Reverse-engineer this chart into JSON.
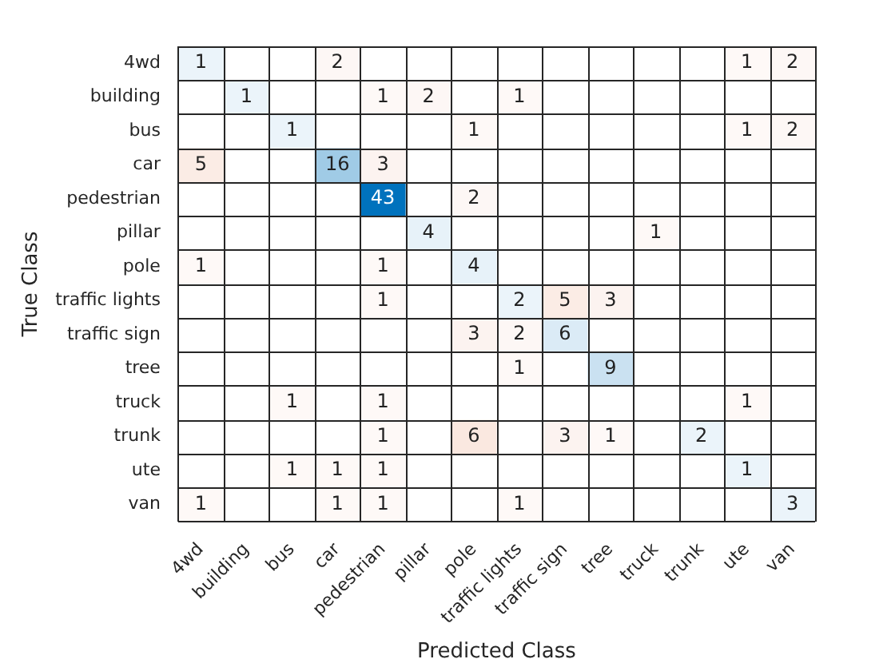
{
  "chart_data": {
    "type": "heatmap",
    "data_labels": true,
    "xlabel": "Predicted Class",
    "ylabel": "True Class",
    "categories": [
      "4wd",
      "building",
      "bus",
      "car",
      "pedestrian",
      "pillar",
      "pole",
      "traffic lights",
      "traffic sign",
      "tree",
      "truck",
      "trunk",
      "ute",
      "van"
    ],
    "y_categories": [
      "4wd",
      "building",
      "bus",
      "car",
      "pedestrian",
      "pillar",
      "pole",
      "traffic lights",
      "traffic sign",
      "tree",
      "truck",
      "trunk",
      "ute",
      "van"
    ],
    "cells": [
      [
        1,
        null,
        null,
        2,
        null,
        null,
        null,
        null,
        null,
        null,
        null,
        null,
        1,
        2
      ],
      [
        null,
        1,
        null,
        null,
        1,
        2,
        null,
        1,
        null,
        null,
        null,
        null,
        null,
        null
      ],
      [
        null,
        null,
        1,
        null,
        null,
        null,
        1,
        null,
        null,
        null,
        null,
        null,
        1,
        2
      ],
      [
        5,
        null,
        null,
        16,
        3,
        null,
        null,
        null,
        null,
        null,
        null,
        null,
        null,
        null
      ],
      [
        null,
        null,
        null,
        null,
        43,
        null,
        2,
        null,
        null,
        null,
        null,
        null,
        null,
        null
      ],
      [
        null,
        null,
        null,
        null,
        null,
        4,
        null,
        null,
        null,
        null,
        1,
        null,
        null,
        null
      ],
      [
        1,
        null,
        null,
        null,
        1,
        null,
        4,
        null,
        null,
        null,
        null,
        null,
        null,
        null
      ],
      [
        null,
        null,
        null,
        null,
        1,
        null,
        null,
        2,
        5,
        3,
        null,
        null,
        null,
        null
      ],
      [
        null,
        null,
        null,
        null,
        null,
        null,
        3,
        2,
        6,
        null,
        null,
        null,
        null,
        null
      ],
      [
        null,
        null,
        null,
        null,
        null,
        null,
        null,
        1,
        null,
        9,
        null,
        null,
        null,
        null
      ],
      [
        null,
        null,
        1,
        null,
        1,
        null,
        null,
        null,
        null,
        null,
        null,
        null,
        1,
        null
      ],
      [
        null,
        null,
        null,
        null,
        1,
        null,
        6,
        null,
        3,
        1,
        null,
        2,
        null,
        null
      ],
      [
        null,
        null,
        1,
        1,
        1,
        null,
        null,
        null,
        null,
        null,
        null,
        null,
        1,
        null
      ],
      [
        1,
        null,
        null,
        1,
        1,
        null,
        null,
        1,
        null,
        null,
        null,
        null,
        null,
        3
      ]
    ]
  }
}
